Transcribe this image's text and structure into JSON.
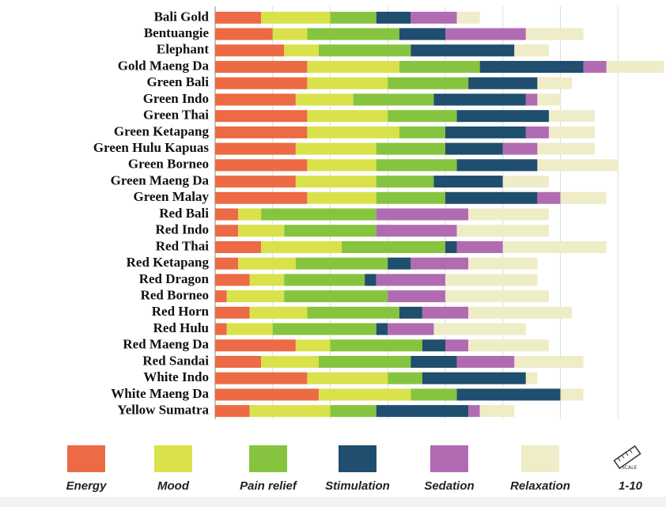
{
  "chart_data": {
    "type": "stacked-bar-horizontal",
    "categories": [
      "Bali Gold",
      "Bentuangie",
      "Elephant",
      "Gold Maeng Da",
      "Green Bali",
      "Green Indo",
      "Green Thai",
      "Green Ketapang",
      "Green Hulu Kapuas",
      "Green Borneo",
      "Green Maeng Da",
      "Green Malay",
      "Red Bali",
      "Red Indo",
      "Red Thai",
      "Red Ketapang",
      "Red Dragon",
      "Red Borneo",
      "Red Horn",
      "Red Hulu",
      "Red Maeng Da",
      "Red Sandai",
      "White Indo",
      "White Maeng Da",
      "Yellow Sumatra"
    ],
    "series": [
      {
        "name": "Energy",
        "color": "#ec6a45",
        "values": [
          4,
          5,
          6,
          8,
          8,
          7,
          8,
          8,
          7,
          8,
          7,
          8,
          2,
          2,
          4,
          2,
          3,
          1,
          3,
          1,
          7,
          4,
          8,
          9,
          3
        ]
      },
      {
        "name": "Mood",
        "color": "#d9e24a",
        "values": [
          6,
          3,
          3,
          8,
          7,
          5,
          7,
          8,
          7,
          6,
          7,
          6,
          2,
          4,
          7,
          5,
          3,
          5,
          5,
          4,
          3,
          5,
          7,
          8,
          7
        ]
      },
      {
        "name": "Pain relief",
        "color": "#86c43f",
        "values": [
          4,
          8,
          8,
          7,
          7,
          7,
          6,
          4,
          6,
          7,
          5,
          6,
          10,
          8,
          9,
          8,
          7,
          9,
          8,
          9,
          8,
          8,
          3,
          4,
          4
        ]
      },
      {
        "name": "Stimulation",
        "color": "#1f4e6e",
        "values": [
          3,
          4,
          9,
          9,
          6,
          8,
          8,
          7,
          5,
          7,
          6,
          8,
          0,
          0,
          1,
          2,
          1,
          0,
          2,
          1,
          2,
          4,
          9,
          9,
          8
        ]
      },
      {
        "name": "Sedation",
        "color": "#b06bb3",
        "values": [
          4,
          7,
          0,
          2,
          0,
          1,
          0,
          2,
          3,
          0,
          0,
          2,
          8,
          7,
          4,
          5,
          6,
          5,
          4,
          4,
          2,
          5,
          0,
          0,
          1
        ]
      },
      {
        "name": "Relaxation",
        "color": "#efecc8",
        "values": [
          2,
          5,
          3,
          5,
          3,
          2,
          4,
          4,
          5,
          7,
          4,
          4,
          7,
          8,
          9,
          6,
          8,
          9,
          9,
          8,
          7,
          6,
          1,
          2,
          3
        ]
      }
    ],
    "xlim": [
      0,
      40
    ],
    "xticks": [
      0,
      5,
      10,
      15,
      20,
      25,
      30,
      35,
      40
    ],
    "grid": true,
    "scale_icon_text": "SCALE",
    "scale_label": "1-10"
  }
}
